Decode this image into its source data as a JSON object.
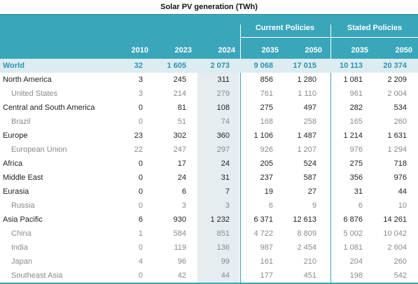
{
  "title": "Solar PV generation (TWh)",
  "groups": {
    "current": "Current Policies",
    "stated": "Stated Policies"
  },
  "years": [
    "2010",
    "2023",
    "2024",
    "2035",
    "2050",
    "2035",
    "2050"
  ],
  "rows": [
    {
      "label": "World",
      "type": "world",
      "values": [
        "32",
        "1 605",
        "2 073",
        "9 068",
        "17 015",
        "10 113",
        "20 374"
      ]
    },
    {
      "label": "North America",
      "type": "region",
      "values": [
        "3",
        "245",
        "311",
        "856",
        "1 280",
        "1 081",
        "2 209"
      ]
    },
    {
      "label": "United States",
      "type": "sub",
      "values": [
        "3",
        "214",
        "279",
        "761",
        "1 110",
        "961",
        "2 004"
      ]
    },
    {
      "label": "Central and South America",
      "type": "region",
      "values": [
        "0",
        "81",
        "108",
        "275",
        "497",
        "282",
        "534"
      ]
    },
    {
      "label": "Brazil",
      "type": "sub",
      "values": [
        "0",
        "51",
        "74",
        "168",
        "258",
        "165",
        "260"
      ]
    },
    {
      "label": "Europe",
      "type": "region",
      "values": [
        "23",
        "302",
        "360",
        "1 106",
        "1 487",
        "1 214",
        "1 631"
      ]
    },
    {
      "label": "European Union",
      "type": "sub",
      "values": [
        "22",
        "247",
        "297",
        "926",
        "1 207",
        "976",
        "1 294"
      ]
    },
    {
      "label": "Africa",
      "type": "region",
      "values": [
        "0",
        "17",
        "24",
        "205",
        "524",
        "275",
        "718"
      ]
    },
    {
      "label": "Middle East",
      "type": "region",
      "values": [
        "0",
        "24",
        "31",
        "237",
        "587",
        "356",
        "976"
      ]
    },
    {
      "label": "Eurasia",
      "type": "region",
      "values": [
        "0",
        "6",
        "7",
        "19",
        "27",
        "31",
        "44"
      ]
    },
    {
      "label": "Russia",
      "type": "sub",
      "values": [
        "0",
        "3",
        "3",
        "6",
        "9",
        "6",
        "10"
      ]
    },
    {
      "label": "Asia Pacific",
      "type": "region",
      "values": [
        "6",
        "930",
        "1 232",
        "6 371",
        "12 613",
        "6 876",
        "14 261"
      ]
    },
    {
      "label": "China",
      "type": "sub",
      "values": [
        "1",
        "584",
        "851",
        "4 722",
        "8 809",
        "5 002",
        "10 042"
      ]
    },
    {
      "label": "India",
      "type": "sub",
      "values": [
        "0",
        "119",
        "136",
        "987",
        "2 454",
        "1 081",
        "2 604"
      ]
    },
    {
      "label": "Japan",
      "type": "sub",
      "values": [
        "4",
        "96",
        "99",
        "161",
        "210",
        "204",
        "260"
      ]
    },
    {
      "label": "Southeast Asia",
      "type": "sub",
      "values": [
        "0",
        "42",
        "44",
        "177",
        "451",
        "198",
        "542"
      ]
    }
  ]
}
